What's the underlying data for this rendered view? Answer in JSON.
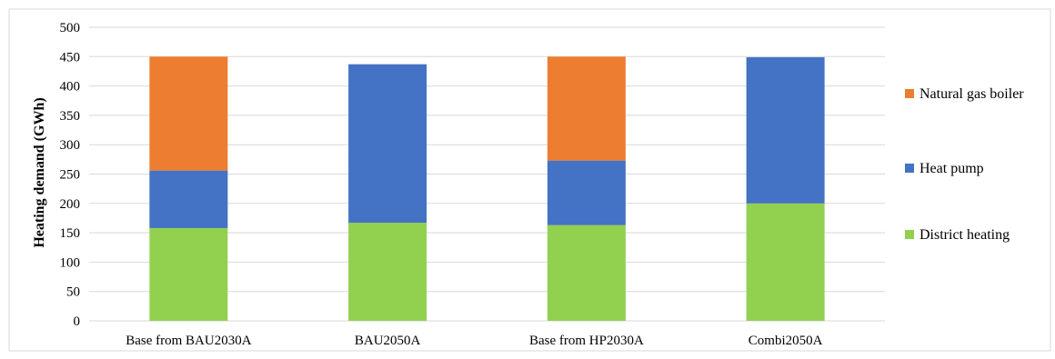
{
  "chart_data": {
    "type": "bar",
    "stacked": true,
    "categories": [
      "Base from BAU2030A",
      "BAU2050A",
      "Base from HP2030A",
      "Combi2050A"
    ],
    "series": [
      {
        "name": "District heating",
        "values": [
          158,
          167,
          163,
          200
        ],
        "color": "#92D050"
      },
      {
        "name": "Heat pump",
        "values": [
          98,
          270,
          110,
          249
        ],
        "color": "#4472C4"
      },
      {
        "name": "Natural gas boiler",
        "values": [
          194,
          0,
          177,
          0
        ],
        "color": "#ED7D31"
      }
    ],
    "ylabel": "Heating demand (GWh)",
    "ylim": [
      0,
      500
    ],
    "yticks": [
      0,
      50,
      100,
      150,
      200,
      250,
      300,
      350,
      400,
      450,
      500
    ],
    "grid": true,
    "legend": "right",
    "legend_order": [
      "Natural gas boiler",
      "Heat pump",
      "District heating"
    ]
  }
}
